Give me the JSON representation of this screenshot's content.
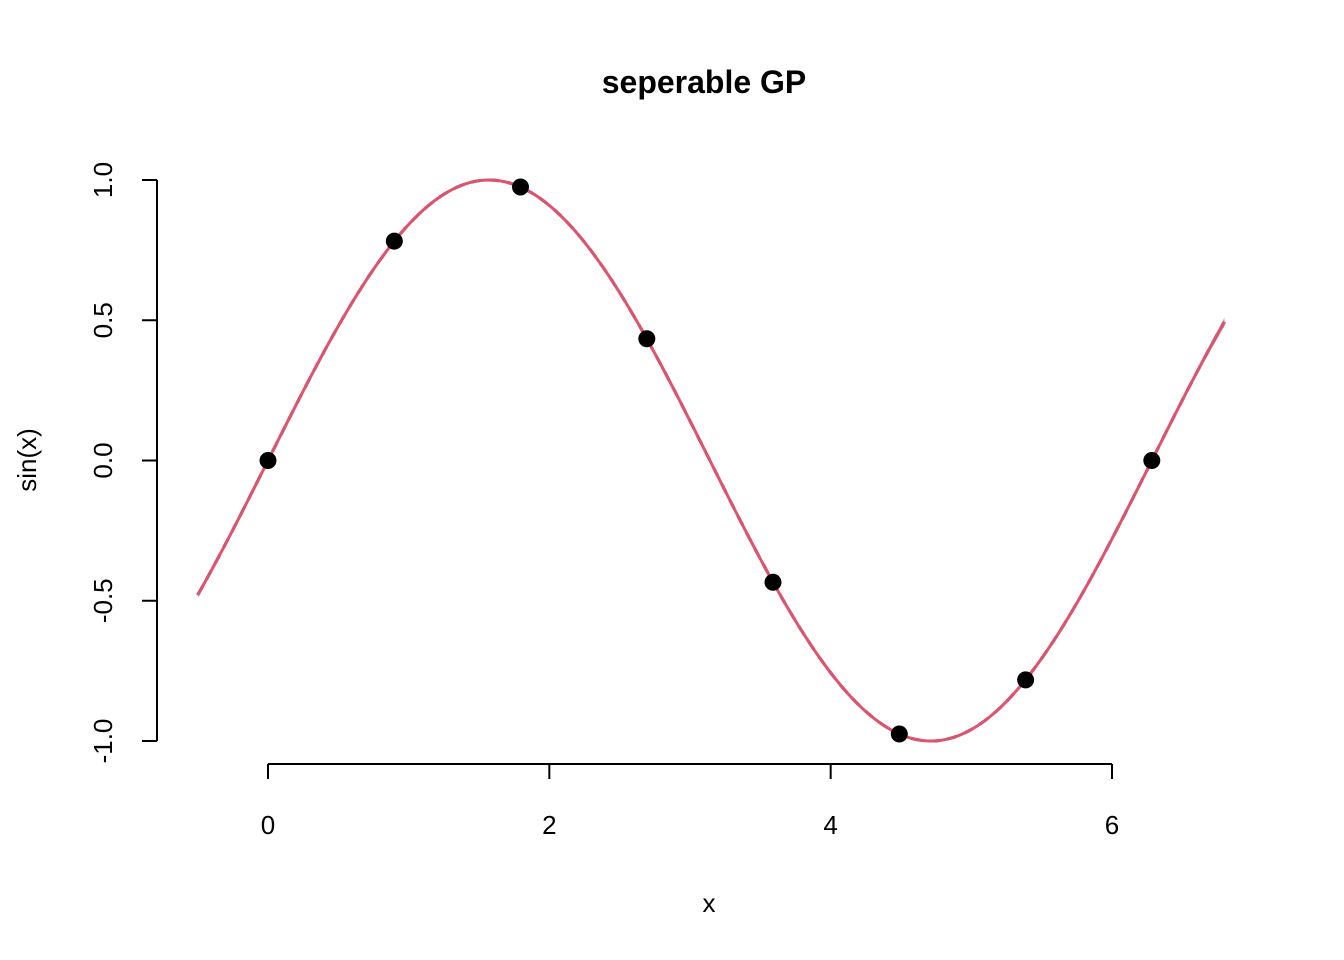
{
  "chart_data": {
    "type": "line",
    "title": "seperable GP",
    "xlabel": "x",
    "ylabel": "sin(x)",
    "xlim": [
      -0.5,
      6.8
    ],
    "ylim": [
      -1.0,
      1.0
    ],
    "x_ticks": [
      0,
      2,
      4,
      6
    ],
    "y_ticks": [
      -1.0,
      -0.5,
      0.0,
      0.5,
      1.0
    ],
    "x_tick_labels": [
      "0",
      "2",
      "4",
      "6"
    ],
    "y_tick_labels": [
      "-1.0",
      "-0.5",
      "0.0",
      "0.5",
      "1.0"
    ],
    "grid": false,
    "points": {
      "x": [
        0.0,
        0.898,
        1.795,
        2.693,
        3.59,
        4.488,
        5.386,
        6.283
      ],
      "y": [
        0.0,
        0.782,
        0.975,
        0.434,
        -0.434,
        -0.975,
        -0.782,
        0.0
      ],
      "color": "#000000"
    },
    "curve": {
      "function": "sin",
      "x_range": [
        -0.5,
        6.8
      ],
      "band_color": "#bdbdbd",
      "mean_color": "#df536b",
      "true_color": "#00008b",
      "mean_style": "solid",
      "true_style": "dashed"
    }
  }
}
